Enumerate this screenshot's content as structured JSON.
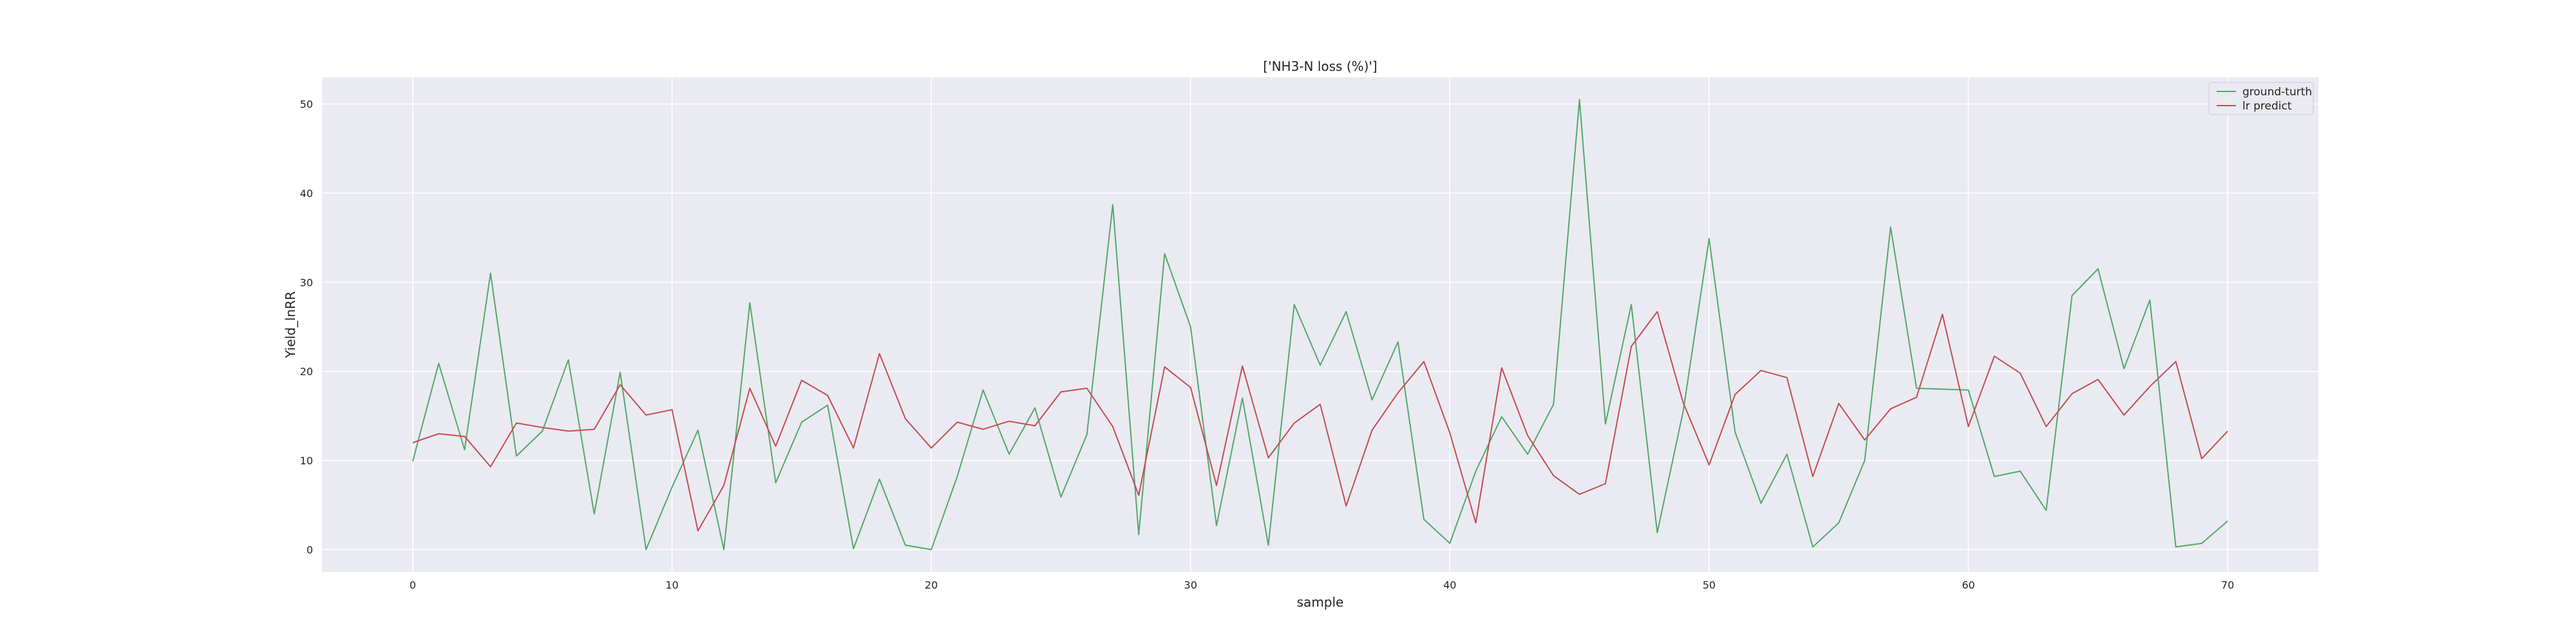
{
  "chart_data": {
    "type": "line",
    "title": "['NH3-N loss (%)']",
    "xlabel": "sample",
    "ylabel": "Yield_lnRR",
    "xlim": [
      -3.5,
      73.5
    ],
    "ylim": [
      -2.5,
      53.0
    ],
    "x_ticks": [
      0,
      10,
      20,
      30,
      40,
      50,
      60,
      70
    ],
    "y_ticks": [
      0,
      10,
      20,
      30,
      40,
      50
    ],
    "grid": true,
    "legend_position": "top-right",
    "colors": {
      "plot_background": "#eaeaf2",
      "grid": "#ffffff",
      "ground_truth": "#55a868",
      "prediction": "#c44e52"
    },
    "series": [
      {
        "name": "ground-turth",
        "color": "#55a868",
        "values": [
          9.9,
          20.9,
          11.2,
          31.0,
          10.5,
          13.3,
          21.3,
          4.0,
          19.9,
          0.0,
          7.0,
          13.4,
          0.0,
          27.7,
          7.5,
          14.3,
          16.2,
          0.1,
          7.9,
          0.5,
          0.0,
          8.2,
          17.9,
          10.7,
          15.9,
          5.9,
          12.9,
          38.7,
          1.7,
          33.2,
          25.0,
          2.7,
          17.0,
          0.5,
          27.5,
          20.7,
          26.7,
          16.8,
          23.3,
          3.4,
          0.7,
          8.8,
          14.9,
          10.7,
          16.3,
          50.5,
          14.1,
          27.5,
          1.9,
          15.5,
          34.9,
          13.2,
          5.2,
          10.7,
          0.3,
          3.0,
          10.0,
          36.2,
          18.1,
          18.0,
          17.9,
          8.2,
          8.8,
          4.4,
          28.5,
          31.5,
          20.3,
          28.0,
          0.3,
          0.7,
          3.2
        ]
      },
      {
        "name": "lr predict",
        "color": "#c44e52",
        "values": [
          12.0,
          13.0,
          12.7,
          9.3,
          14.2,
          13.7,
          13.3,
          13.5,
          18.5,
          15.1,
          15.7,
          2.1,
          7.2,
          18.1,
          11.6,
          19.0,
          17.3,
          11.4,
          22.0,
          14.7,
          11.4,
          14.3,
          13.5,
          14.4,
          13.9,
          17.7,
          18.1,
          13.8,
          6.1,
          20.5,
          18.2,
          7.2,
          20.6,
          10.3,
          14.2,
          16.3,
          4.9,
          13.4,
          17.6,
          21.1,
          13.1,
          3.0,
          20.4,
          12.8,
          8.3,
          6.2,
          7.4,
          22.8,
          26.7,
          16.5,
          9.5,
          17.4,
          20.1,
          19.3,
          8.2,
          16.4,
          12.3,
          15.8,
          17.1,
          26.4,
          13.8,
          21.7,
          19.8,
          13.8,
          17.5,
          19.1,
          15.1,
          18.3,
          21.1,
          10.2,
          13.3
        ]
      }
    ]
  }
}
